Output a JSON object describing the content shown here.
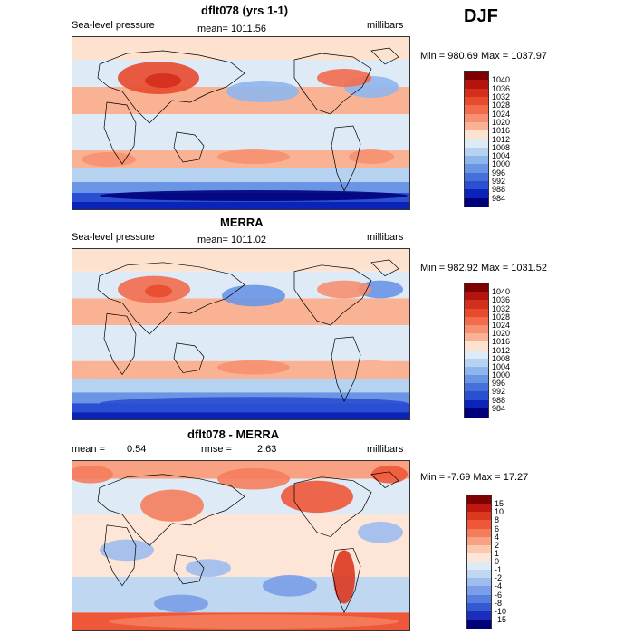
{
  "season": "DJF",
  "panels": [
    {
      "title": "dflt078 (yrs 1-1)",
      "variable": "Sea-level pressure",
      "stat_text": "mean= 1011.56",
      "units": "millibars",
      "minmax": "Min = 980.69 Max = 1037.97",
      "colorbar_labels": [
        "1040",
        "1036",
        "1032",
        "1028",
        "1024",
        "1020",
        "1016",
        "1012",
        "1008",
        "1004",
        "1000",
        "996",
        "992",
        "988",
        "984"
      ]
    },
    {
      "title": "MERRA",
      "variable": "Sea-level pressure",
      "stat_text": "mean= 1011.02",
      "units": "millibars",
      "minmax": "Min = 982.92 Max = 1031.52",
      "colorbar_labels": [
        "1040",
        "1036",
        "1032",
        "1028",
        "1024",
        "1020",
        "1016",
        "1012",
        "1008",
        "1004",
        "1000",
        "996",
        "992",
        "988",
        "984"
      ]
    },
    {
      "title": "dflt078 - MERRA",
      "mean_label": "mean =",
      "mean_value": "0.54",
      "rmse_label": "rmse =",
      "rmse_value": "2.63",
      "units": "millibars",
      "minmax": "Min =  -7.69 Max =  17.27",
      "colorbar_labels": [
        "15",
        "10",
        "8",
        "6",
        "4",
        "2",
        "1",
        "0",
        "-1",
        "-2",
        "-4",
        "-6",
        "-8",
        "-10",
        "-15"
      ]
    }
  ],
  "chart_data": [
    {
      "type": "heatmap",
      "title": "dflt078 (yrs 1-1)",
      "variable": "Sea-level pressure",
      "units": "millibars",
      "mean": 1011.56,
      "min": 980.69,
      "max": 1037.97,
      "color_levels": [
        984,
        988,
        992,
        996,
        1000,
        1004,
        1008,
        1012,
        1016,
        1020,
        1024,
        1028,
        1032,
        1036,
        1040
      ]
    },
    {
      "type": "heatmap",
      "title": "MERRA",
      "variable": "Sea-level pressure",
      "units": "millibars",
      "mean": 1011.02,
      "min": 982.92,
      "max": 1031.52,
      "color_levels": [
        984,
        988,
        992,
        996,
        1000,
        1004,
        1008,
        1012,
        1016,
        1020,
        1024,
        1028,
        1032,
        1036,
        1040
      ]
    },
    {
      "type": "heatmap",
      "title": "dflt078 - MERRA",
      "units": "millibars",
      "mean": 0.54,
      "rmse": 2.63,
      "min": -7.69,
      "max": 17.27,
      "color_levels": [
        -15,
        -10,
        -8,
        -6,
        -4,
        -2,
        -1,
        0,
        1,
        2,
        4,
        6,
        8,
        10,
        15
      ]
    }
  ],
  "colors": {
    "abs_scale": [
      "#7f0000",
      "#b3150d",
      "#d42e1c",
      "#e84a2c",
      "#f26b4c",
      "#f69070",
      "#fab295",
      "#fde2cf",
      "#deebf7",
      "#b5d2f0",
      "#8fb6ec",
      "#6a95e4",
      "#4570da",
      "#2a4fd2",
      "#0a23b8",
      "#00007a"
    ],
    "diff_scale": [
      "#7f0000",
      "#c0180f",
      "#dc3720",
      "#ee5838",
      "#f47d5c",
      "#f8a283",
      "#fcc8ae",
      "#fde6d8",
      "#deebf7",
      "#c0d7f2",
      "#9dbdee",
      "#7a9ee8",
      "#567ee0",
      "#3358d2",
      "#1a2dbb",
      "#00007a"
    ]
  }
}
